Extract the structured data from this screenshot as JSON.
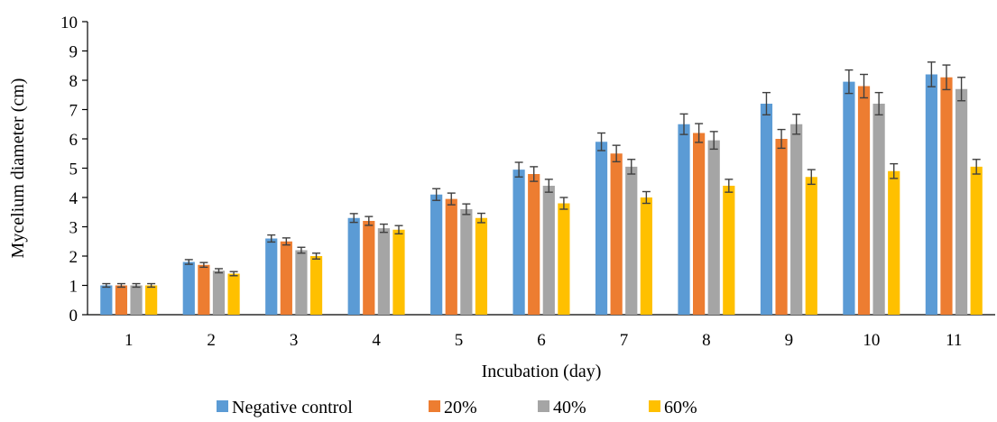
{
  "chart_data": {
    "type": "bar",
    "title": "",
    "xlabel": "Incubation (day)",
    "ylabel": "Mycelium diameter (cm)",
    "ylim": [
      0,
      10
    ],
    "yticks": [
      0,
      1,
      2,
      3,
      4,
      5,
      6,
      7,
      8,
      9,
      10
    ],
    "categories": [
      "1",
      "2",
      "3",
      "4",
      "5",
      "6",
      "7",
      "8",
      "9",
      "10",
      "11"
    ],
    "grid": false,
    "legend": "bottom",
    "error_bars": true,
    "series": [
      {
        "name": "Negative control",
        "color": "#5B9BD5",
        "values": [
          1.0,
          1.8,
          2.6,
          3.3,
          4.1,
          4.95,
          5.9,
          6.5,
          7.2,
          7.95,
          8.2
        ],
        "errors": [
          0.06,
          0.08,
          0.12,
          0.15,
          0.2,
          0.25,
          0.3,
          0.35,
          0.38,
          0.4,
          0.42
        ]
      },
      {
        "name": "20%",
        "color": "#ED7D31",
        "values": [
          1.0,
          1.7,
          2.5,
          3.2,
          3.95,
          4.8,
          5.5,
          6.2,
          6.0,
          7.8,
          8.1
        ],
        "errors": [
          0.06,
          0.08,
          0.12,
          0.15,
          0.2,
          0.25,
          0.28,
          0.32,
          0.32,
          0.4,
          0.42
        ]
      },
      {
        "name": "40%",
        "color": "#A5A5A5",
        "values": [
          1.0,
          1.5,
          2.2,
          2.95,
          3.6,
          4.4,
          5.05,
          5.95,
          6.5,
          7.2,
          7.7
        ],
        "errors": [
          0.06,
          0.07,
          0.1,
          0.14,
          0.18,
          0.22,
          0.25,
          0.3,
          0.34,
          0.38,
          0.4
        ]
      },
      {
        "name": "60%",
        "color": "#FFC000",
        "values": [
          1.0,
          1.4,
          2.0,
          2.9,
          3.3,
          3.8,
          4.0,
          4.4,
          4.7,
          4.9,
          5.05
        ],
        "errors": [
          0.06,
          0.07,
          0.1,
          0.14,
          0.16,
          0.2,
          0.2,
          0.22,
          0.25,
          0.25,
          0.25
        ]
      }
    ]
  }
}
